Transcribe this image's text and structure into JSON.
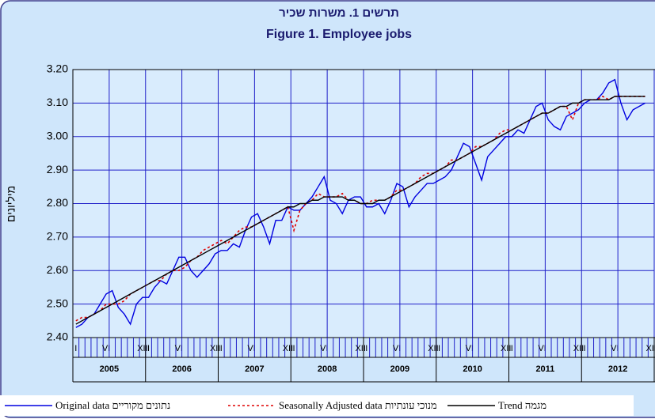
{
  "chart_data": {
    "type": "line",
    "title": "תרשים 1. משרות שכיר",
    "subtitle": "Figure 1. Employee jobs",
    "y_label": "מיליונים",
    "categories": [
      "I",
      null,
      null,
      null,
      null,
      "VI",
      null,
      null,
      null,
      null,
      null,
      "XII",
      "I",
      null,
      null,
      null,
      null,
      "VI",
      null,
      null,
      null,
      null,
      null,
      "XII",
      "I",
      null,
      null,
      null,
      null,
      "VI",
      null,
      null,
      null,
      null,
      null,
      "XII",
      "I",
      null,
      null,
      null,
      null,
      "VI",
      null,
      null,
      null,
      null,
      null,
      "XII",
      "I",
      null,
      null,
      null,
      null,
      "VI",
      null,
      null,
      null,
      null,
      null,
      "XII",
      "I",
      null,
      null,
      null,
      null,
      "VI",
      null,
      null,
      null,
      null,
      null,
      "XII",
      "I",
      null,
      null,
      null,
      null,
      "VI",
      null,
      null,
      null,
      null,
      null,
      "XII",
      "I",
      null,
      null,
      null,
      null,
      "VI",
      null,
      null,
      null,
      null,
      null,
      "XII"
    ],
    "years": [
      "2005",
      "2006",
      "2007",
      "2008",
      "2009",
      "2010",
      "2011",
      "2012"
    ],
    "ylim": [
      2.4,
      3.2
    ],
    "yticks": [
      {
        "value": 2.4,
        "label": "2.40"
      },
      {
        "value": 2.5,
        "label": "2.50"
      },
      {
        "value": 2.6,
        "label": "2.60"
      },
      {
        "value": 2.7,
        "label": "2.70"
      },
      {
        "value": 2.8,
        "label": "2.80"
      },
      {
        "value": 2.9,
        "label": "2.90"
      },
      {
        "value": 3.0,
        "label": "3.00"
      },
      {
        "value": 3.1,
        "label": "3.10"
      },
      {
        "value": 3.2,
        "label": "3.20"
      }
    ],
    "grid": true,
    "series": [
      {
        "name": "Original data  נתונים מקוריים",
        "color": "#0000e0",
        "dash": "solid",
        "values": [
          2.43,
          2.44,
          2.46,
          2.47,
          2.5,
          2.53,
          2.54,
          2.49,
          2.47,
          2.44,
          2.5,
          2.52,
          2.52,
          2.55,
          2.57,
          2.56,
          2.6,
          2.64,
          2.64,
          2.6,
          2.58,
          2.6,
          2.62,
          2.65,
          2.66,
          2.66,
          2.68,
          2.67,
          2.72,
          2.76,
          2.77,
          2.73,
          2.68,
          2.75,
          2.75,
          2.79,
          2.78,
          2.78,
          2.8,
          2.82,
          2.85,
          2.88,
          2.81,
          2.8,
          2.77,
          2.81,
          2.82,
          2.82,
          2.79,
          2.79,
          2.8,
          2.77,
          2.81,
          2.86,
          2.85,
          2.79,
          2.82,
          2.84,
          2.86,
          2.86,
          2.87,
          2.88,
          2.9,
          2.94,
          2.98,
          2.97,
          2.92,
          2.87,
          2.94,
          2.96,
          2.98,
          3.0,
          3.0,
          3.02,
          3.01,
          3.05,
          3.09,
          3.1,
          3.05,
          3.03,
          3.02,
          3.06,
          3.07,
          3.08,
          3.1,
          3.11,
          3.11,
          3.13,
          3.16,
          3.17,
          3.1,
          3.05,
          3.08,
          3.09,
          3.1,
          null
        ]
      },
      {
        "name": "Seasonally Adjusted data  מנוכי עונתיות",
        "color": "#e00000",
        "dash": "dashed",
        "values": [
          2.45,
          2.46,
          2.46,
          2.47,
          2.48,
          2.5,
          2.5,
          2.5,
          2.51,
          2.53,
          2.54,
          2.55,
          2.56,
          2.57,
          2.57,
          2.59,
          2.6,
          2.6,
          2.61,
          2.63,
          2.64,
          2.66,
          2.67,
          2.68,
          2.69,
          2.68,
          2.7,
          2.72,
          2.73,
          2.73,
          2.74,
          2.75,
          2.76,
          2.77,
          2.78,
          2.79,
          2.72,
          2.78,
          2.8,
          2.81,
          2.83,
          2.82,
          2.82,
          2.82,
          2.83,
          2.81,
          2.81,
          2.8,
          2.8,
          2.81,
          2.81,
          2.81,
          2.82,
          2.84,
          2.84,
          2.85,
          2.86,
          2.88,
          2.89,
          2.89,
          2.9,
          2.91,
          2.93,
          2.93,
          2.94,
          2.95,
          2.97,
          2.97,
          2.98,
          2.99,
          3.01,
          3.02,
          3.02,
          3.03,
          3.04,
          3.05,
          3.06,
          3.07,
          3.07,
          3.08,
          3.09,
          3.09,
          3.05,
          3.1,
          3.11,
          3.11,
          3.11,
          3.12,
          3.11,
          3.12,
          3.12,
          3.12,
          3.12,
          3.12,
          3.12,
          null
        ]
      },
      {
        "name": "Trend  מגמה",
        "color": "#000000",
        "dash": "solid",
        "values": [
          2.44,
          2.45,
          2.46,
          2.47,
          2.48,
          2.49,
          2.5,
          2.51,
          2.52,
          2.53,
          2.54,
          2.55,
          2.56,
          2.57,
          2.58,
          2.59,
          2.6,
          2.61,
          2.62,
          2.63,
          2.64,
          2.65,
          2.66,
          2.67,
          2.68,
          2.69,
          2.7,
          2.71,
          2.72,
          2.73,
          2.74,
          2.75,
          2.76,
          2.77,
          2.78,
          2.79,
          2.79,
          2.8,
          2.8,
          2.81,
          2.81,
          2.82,
          2.82,
          2.82,
          2.82,
          2.81,
          2.81,
          2.8,
          2.8,
          2.8,
          2.81,
          2.81,
          2.82,
          2.83,
          2.84,
          2.85,
          2.86,
          2.87,
          2.88,
          2.89,
          2.9,
          2.91,
          2.92,
          2.93,
          2.94,
          2.95,
          2.96,
          2.97,
          2.98,
          2.99,
          3.0,
          3.01,
          3.02,
          3.03,
          3.04,
          3.05,
          3.06,
          3.07,
          3.07,
          3.08,
          3.09,
          3.09,
          3.1,
          3.1,
          3.11,
          3.11,
          3.11,
          3.11,
          3.11,
          3.12,
          3.12,
          3.12,
          3.12,
          3.12,
          3.12,
          null
        ]
      }
    ]
  }
}
